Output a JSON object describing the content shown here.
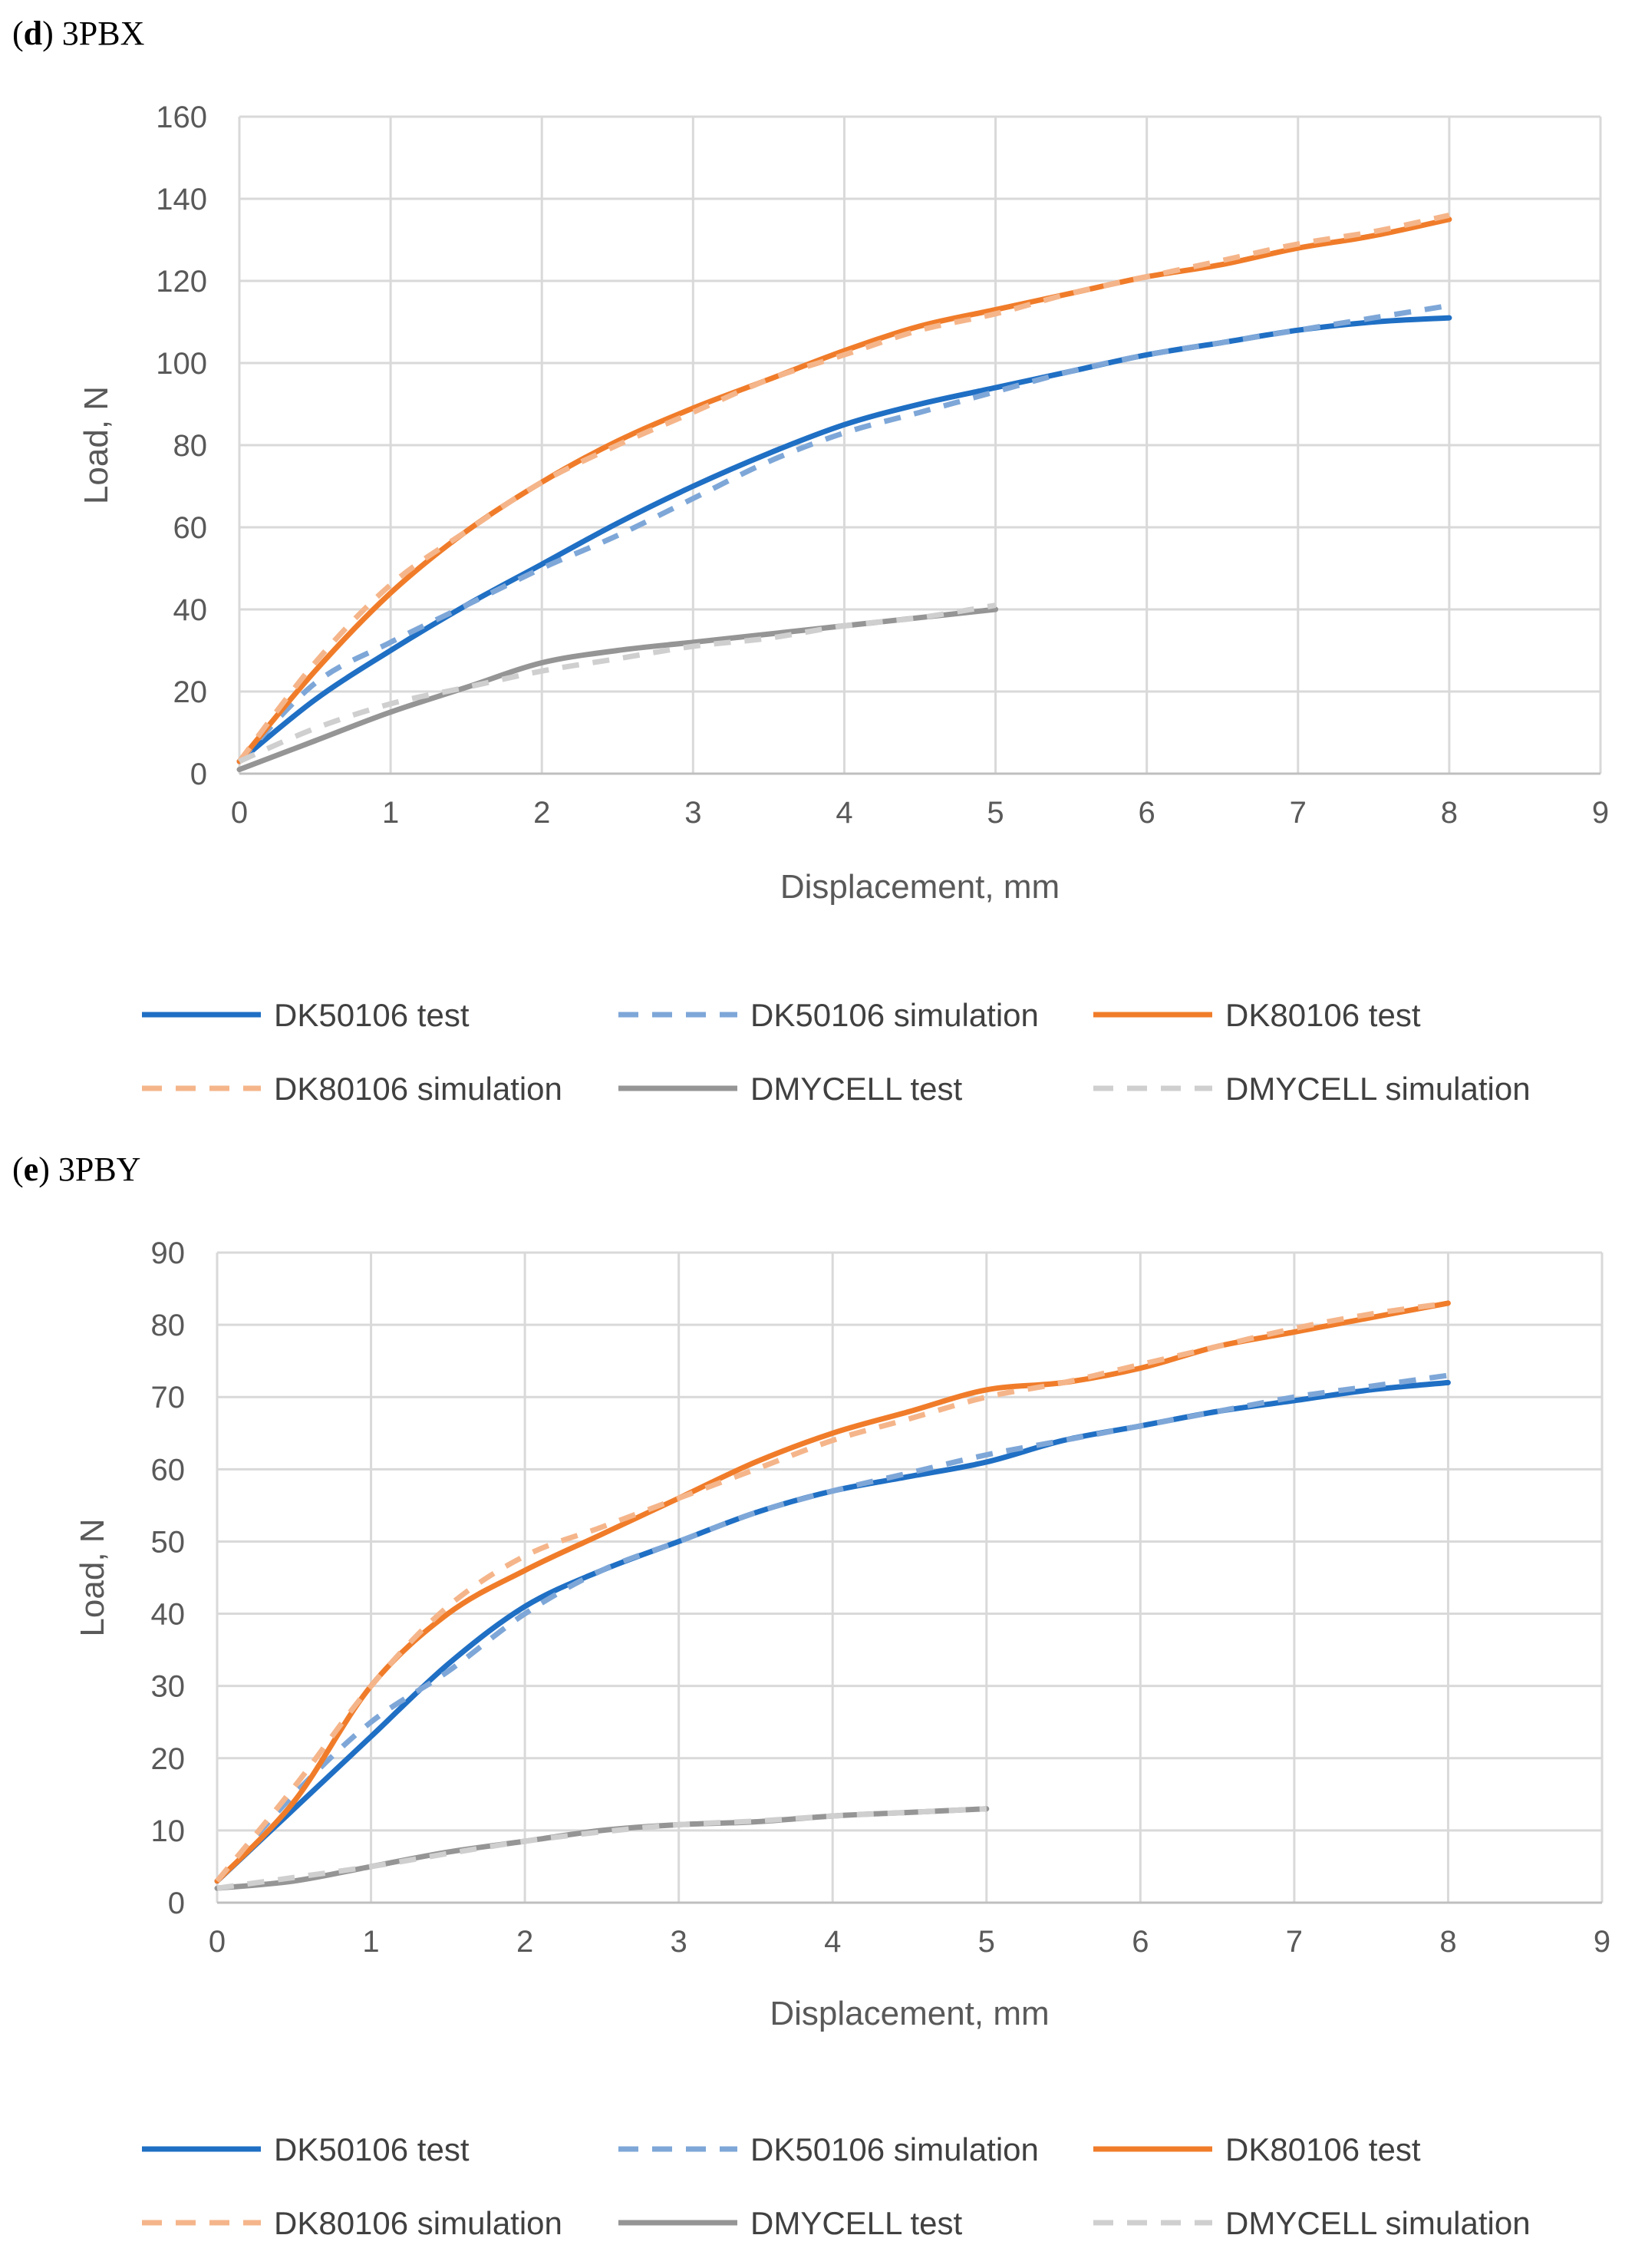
{
  "chart_data": [
    {
      "type": "line",
      "panel_letter": "d",
      "title": "3PBX",
      "xlabel": "Displacement, mm",
      "ylabel": "Load, N",
      "xlim": [
        0,
        9
      ],
      "ylim": [
        0,
        160
      ],
      "x_ticks": [
        "0",
        "1",
        "2",
        "3",
        "4",
        "5",
        "6",
        "7",
        "8",
        "9"
      ],
      "y_ticks": [
        "0",
        "20",
        "40",
        "60",
        "80",
        "100",
        "120",
        "140",
        "160"
      ],
      "grid": true,
      "legend_position": "bottom",
      "series": [
        {
          "name": "DK50106 test",
          "color": "#1f6fc4",
          "dash": "solid",
          "x": [
            0,
            0.5,
            1,
            1.5,
            2,
            2.5,
            3,
            3.5,
            4,
            4.5,
            5,
            5.5,
            6,
            6.5,
            7,
            7.5,
            8
          ],
          "y": [
            3,
            18,
            30,
            41,
            51,
            61,
            70,
            78,
            85,
            90,
            94,
            98,
            102,
            105,
            108,
            110,
            111
          ]
        },
        {
          "name": "DK50106 simulation",
          "color": "#7ea7d8",
          "dash": "dashed",
          "x": [
            0,
            0.5,
            1,
            1.5,
            2,
            2.5,
            3,
            3.5,
            4,
            4.5,
            5,
            5.5,
            6,
            6.5,
            7,
            7.5,
            8
          ],
          "y": [
            3,
            22,
            32,
            41,
            50,
            58,
            67,
            76,
            83,
            88,
            93,
            98,
            102,
            105,
            108,
            111,
            114
          ]
        },
        {
          "name": "DK80106 test",
          "color": "#f07c2a",
          "dash": "solid",
          "x": [
            0,
            0.5,
            1,
            1.5,
            2,
            2.5,
            3,
            3.5,
            4,
            4.5,
            5,
            5.5,
            6,
            6.5,
            7,
            7.5,
            8
          ],
          "y": [
            3,
            25,
            44,
            59,
            71,
            81,
            89,
            96,
            103,
            109,
            113,
            117,
            121,
            124,
            128,
            131,
            135
          ]
        },
        {
          "name": "DK80106 simulation",
          "color": "#f5b58a",
          "dash": "dashed",
          "x": [
            0,
            0.5,
            1,
            1.5,
            2,
            2.5,
            3,
            3.5,
            4,
            4.5,
            5,
            5.5,
            6,
            6.5,
            7,
            7.5,
            8
          ],
          "y": [
            3,
            27,
            46,
            59,
            71,
            80,
            88,
            96,
            102,
            108,
            112,
            117,
            121,
            125,
            129,
            132,
            136
          ]
        },
        {
          "name": "DMYCELL test",
          "color": "#959595",
          "dash": "solid",
          "x": [
            0,
            0.5,
            1,
            1.5,
            2,
            2.5,
            3,
            3.5,
            4,
            4.5,
            5
          ],
          "y": [
            1,
            8,
            15,
            21,
            27,
            30,
            32,
            34,
            36,
            38,
            40
          ]
        },
        {
          "name": "DMYCELL simulation",
          "color": "#cfcfcf",
          "dash": "dashed",
          "x": [
            0,
            0.5,
            1,
            1.5,
            2,
            2.5,
            3,
            3.5,
            4,
            4.5,
            5
          ],
          "y": [
            3,
            11,
            17,
            21,
            25,
            28,
            31,
            33,
            36,
            38,
            41
          ]
        }
      ]
    },
    {
      "type": "line",
      "panel_letter": "e",
      "title": "3PBY",
      "xlabel": "Displacement, mm",
      "ylabel": "Load, N",
      "xlim": [
        0,
        9
      ],
      "ylim": [
        0,
        90
      ],
      "x_ticks": [
        "0",
        "1",
        "2",
        "3",
        "4",
        "5",
        "6",
        "7",
        "8",
        "9"
      ],
      "y_ticks": [
        "0",
        "10",
        "20",
        "30",
        "40",
        "50",
        "60",
        "70",
        "80",
        "90"
      ],
      "grid": true,
      "legend_position": "bottom",
      "series": [
        {
          "name": "DK50106 test",
          "color": "#1f6fc4",
          "dash": "solid",
          "x": [
            0,
            0.5,
            1,
            1.5,
            2,
            2.5,
            3,
            3.5,
            4,
            4.5,
            5,
            5.5,
            6,
            6.5,
            7,
            7.5,
            8
          ],
          "y": [
            3,
            13,
            23,
            33,
            41,
            46,
            50,
            54,
            57,
            59,
            61,
            64,
            66,
            68,
            69.5,
            71,
            72
          ]
        },
        {
          "name": "DK50106 simulation",
          "color": "#7ea7d8",
          "dash": "dashed",
          "x": [
            0,
            0.5,
            1,
            1.5,
            2,
            2.5,
            3,
            3.5,
            4,
            4.5,
            5,
            5.5,
            6,
            6.5,
            7,
            7.5,
            8
          ],
          "y": [
            3,
            15,
            25,
            32,
            40,
            46,
            50,
            54,
            57,
            59.5,
            62,
            64,
            66,
            68,
            70,
            71.5,
            73
          ]
        },
        {
          "name": "DK80106 test",
          "color": "#f07c2a",
          "dash": "solid",
          "x": [
            0,
            0.5,
            1,
            1.5,
            2,
            2.5,
            3,
            3.5,
            4,
            4.5,
            5,
            5.5,
            6,
            6.5,
            7,
            7.5,
            8
          ],
          "y": [
            3,
            14,
            30,
            40,
            46,
            51,
            56,
            61,
            65,
            68,
            71,
            72,
            74,
            77,
            79,
            81,
            83
          ]
        },
        {
          "name": "DK80106 simulation",
          "color": "#f5b58a",
          "dash": "dashed",
          "x": [
            0,
            0.5,
            1,
            1.5,
            2,
            2.5,
            3,
            3.5,
            4,
            4.5,
            5,
            5.5,
            6,
            6.5,
            7,
            7.5,
            8
          ],
          "y": [
            3,
            16,
            30,
            41,
            48,
            52,
            56,
            60,
            64,
            67,
            70,
            72,
            74.5,
            77,
            79.5,
            81.5,
            83
          ]
        },
        {
          "name": "DMYCELL test",
          "color": "#959595",
          "dash": "solid",
          "x": [
            0,
            0.5,
            1,
            1.5,
            2,
            2.5,
            3,
            3.5,
            4,
            4.5,
            5
          ],
          "y": [
            2,
            3,
            5,
            7,
            8.5,
            10,
            10.8,
            11.2,
            12,
            12.5,
            13
          ]
        },
        {
          "name": "DMYCELL simulation",
          "color": "#cfcfcf",
          "dash": "dashed",
          "x": [
            0,
            0.5,
            1,
            1.5,
            2,
            2.5,
            3,
            3.5,
            4,
            4.5,
            5
          ],
          "y": [
            2,
            3.5,
            5,
            6.8,
            8.5,
            9.8,
            10.8,
            11.3,
            12,
            12.5,
            13
          ]
        }
      ]
    }
  ]
}
